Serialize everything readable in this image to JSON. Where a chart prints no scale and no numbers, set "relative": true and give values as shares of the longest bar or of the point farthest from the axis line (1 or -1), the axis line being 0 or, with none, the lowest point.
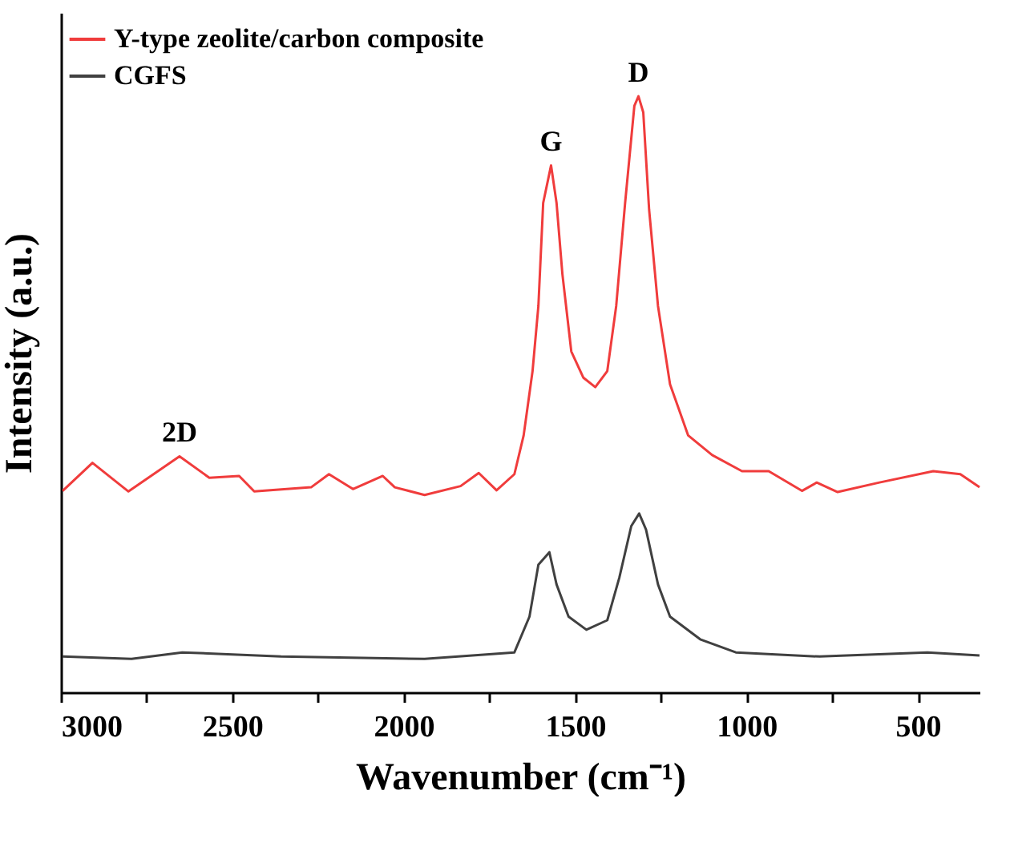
{
  "chart_data": {
    "type": "line",
    "relative": true,
    "xlabel": "Wavenumber (cm⁻¹)",
    "ylabel": "Intensity (a.u.)",
    "xlim": [
      3000,
      320
    ],
    "xticks": [
      3000,
      {
        "value": 2750,
        "label": null
      },
      2500,
      {
        "value": 2250,
        "label": null
      },
      2000,
      {
        "value": 1750,
        "label": null
      },
      1500,
      {
        "value": 1250,
        "label": null
      },
      1000,
      {
        "value": 750,
        "label": null
      },
      500
    ],
    "legend": "top left",
    "grid": false,
    "annotations": [
      {
        "text": "2D",
        "x": 2654,
        "y": 0.396
      },
      {
        "text": "G",
        "x": 1570,
        "y": 0.884
      },
      {
        "text": "D",
        "x": 1315,
        "y": 1.0
      }
    ],
    "series": [
      {
        "name": "Y-type zeolite/carbon composite",
        "color": "#f03c3c",
        "x": [
          2995,
          2908,
          2803,
          2654,
          2567,
          2480,
          2436,
          2270,
          2218,
          2148,
          2061,
          2026,
          1939,
          1834,
          1781,
          1729,
          1677,
          1650,
          1624,
          1607,
          1593,
          1570,
          1554,
          1537,
          1511,
          1476,
          1441,
          1406,
          1380,
          1354,
          1327,
          1315,
          1301,
          1284,
          1258,
          1223,
          1170,
          1100,
          1013,
          935,
          838,
          795,
          734,
          612,
          455,
          376,
          320
        ],
        "values": [
          0.338,
          0.385,
          0.337,
          0.396,
          0.36,
          0.363,
          0.337,
          0.344,
          0.366,
          0.341,
          0.363,
          0.344,
          0.331,
          0.346,
          0.368,
          0.339,
          0.366,
          0.431,
          0.539,
          0.648,
          0.821,
          0.884,
          0.821,
          0.702,
          0.572,
          0.528,
          0.512,
          0.539,
          0.648,
          0.821,
          0.984,
          1.0,
          0.973,
          0.81,
          0.648,
          0.517,
          0.431,
          0.398,
          0.371,
          0.371,
          0.338,
          0.352,
          0.336,
          0.352,
          0.371,
          0.366,
          0.344
        ]
      },
      {
        "name": "CGFS",
        "color": "#404040",
        "x": [
          2995,
          2794,
          2646,
          2358,
          1939,
          1677,
          1633,
          1607,
          1575,
          1554,
          1519,
          1467,
          1406,
          1371,
          1336,
          1313,
          1293,
          1258,
          1223,
          1135,
          1031,
          786,
          472,
          320
        ],
        "values": [
          0.06,
          0.056,
          0.067,
          0.06,
          0.056,
          0.067,
          0.127,
          0.214,
          0.235,
          0.181,
          0.127,
          0.105,
          0.121,
          0.192,
          0.279,
          0.3,
          0.273,
          0.181,
          0.127,
          0.089,
          0.067,
          0.06,
          0.067,
          0.062
        ]
      }
    ]
  }
}
